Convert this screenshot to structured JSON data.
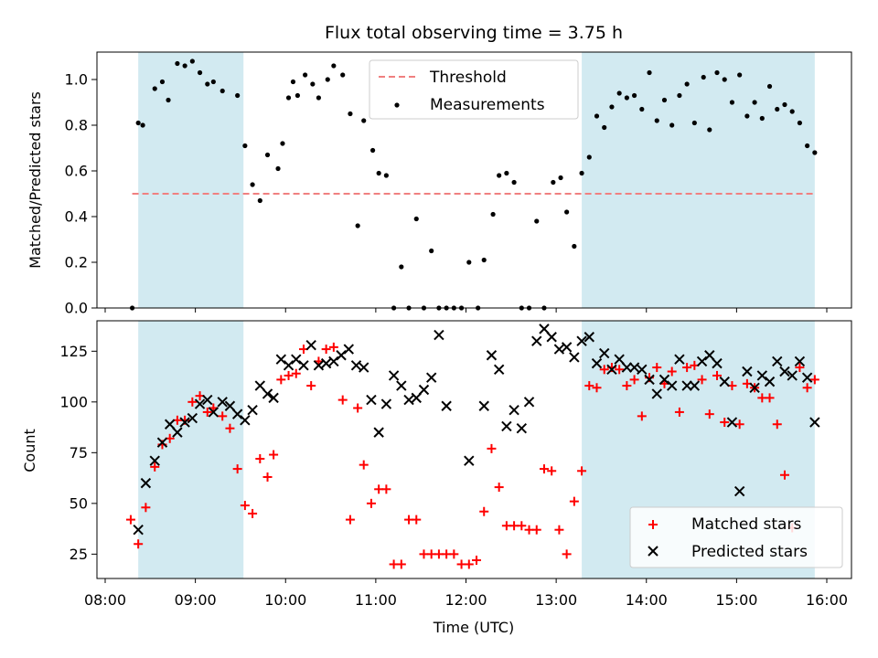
{
  "chart_data": [
    {
      "type": "scatter",
      "title": "Flux total observing time = 3.75 h",
      "xlabel": "",
      "ylabel": "Matched/Predicted stars",
      "xlim": [
        "08:00",
        "16:00"
      ],
      "ylim": [
        0,
        1.12
      ],
      "yticks": [
        "0.0",
        "0.2",
        "0.4",
        "0.6",
        "0.8",
        "1.0"
      ],
      "shaded_intervals": [
        [
          "08:22",
          "09:32"
        ],
        [
          "13:17",
          "15:52"
        ]
      ],
      "shade_color": "#add8e6",
      "threshold": {
        "name": "Threshold",
        "value": 0.5,
        "x_range": [
          "08:18",
          "15:52"
        ],
        "color": "#f08080"
      },
      "legend": {
        "position": "top-center",
        "entries": [
          "Threshold",
          "Measurements"
        ]
      },
      "series": [
        {
          "name": "Measurements",
          "color": "#000000",
          "x": [
            "08:18",
            "08:22",
            "08:25",
            "08:33",
            "08:38",
            "08:42",
            "08:48",
            "08:53",
            "08:58",
            "09:03",
            "09:08",
            "09:12",
            "09:18",
            "09:28",
            "09:33",
            "09:38",
            "09:43",
            "09:48",
            "09:55",
            "09:58",
            "10:02",
            "10:05",
            "10:08",
            "10:13",
            "10:18",
            "10:22",
            "10:28",
            "10:32",
            "10:38",
            "10:43",
            "10:48",
            "10:52",
            "10:58",
            "11:02",
            "11:07",
            "11:12",
            "11:17",
            "11:22",
            "11:27",
            "11:32",
            "11:37",
            "11:42",
            "11:47",
            "11:52",
            "11:57",
            "12:02",
            "12:08",
            "12:12",
            "12:18",
            "12:22",
            "12:27",
            "12:32",
            "12:37",
            "12:42",
            "12:47",
            "12:52",
            "12:58",
            "13:03",
            "13:07",
            "13:12",
            "13:17",
            "13:22",
            "13:27",
            "13:32",
            "13:37",
            "13:42",
            "13:47",
            "13:52",
            "13:57",
            "14:02",
            "14:07",
            "14:12",
            "14:17",
            "14:22",
            "14:27",
            "14:32",
            "14:38",
            "14:42",
            "14:47",
            "14:52",
            "14:57",
            "15:02",
            "15:07",
            "15:12",
            "15:17",
            "15:22",
            "15:27",
            "15:32",
            "15:37",
            "15:42",
            "15:47",
            "15:52"
          ],
          "y": [
            0.0,
            0.81,
            0.8,
            0.96,
            0.99,
            0.91,
            1.07,
            1.06,
            1.08,
            1.03,
            0.98,
            0.99,
            0.95,
            0.93,
            0.71,
            0.54,
            0.47,
            0.67,
            0.61,
            0.72,
            0.92,
            0.99,
            0.93,
            1.02,
            0.98,
            0.92,
            1.0,
            1.06,
            1.02,
            0.85,
            0.36,
            0.82,
            0.69,
            0.59,
            0.58,
            0.0,
            0.18,
            0.0,
            0.39,
            0.0,
            0.25,
            0.0,
            0.0,
            0.0,
            0.0,
            0.2,
            0.0,
            0.21,
            0.41,
            0.58,
            0.59,
            0.55,
            0.0,
            0.0,
            0.38,
            0.0,
            0.55,
            0.57,
            0.42,
            0.27,
            0.59,
            0.66,
            0.84,
            0.79,
            0.88,
            0.94,
            0.92,
            0.93,
            0.87,
            1.03,
            0.82,
            0.91,
            0.8,
            0.93,
            0.98,
            0.81,
            1.01,
            0.78,
            1.03,
            1.0,
            0.9,
            1.02,
            0.84,
            0.9,
            0.83,
            0.97,
            0.87,
            0.89,
            0.86,
            0.81,
            0.71,
            0.68
          ]
        }
      ]
    },
    {
      "type": "scatter",
      "title": "",
      "xlabel": "Time (UTC)",
      "ylabel": "Count",
      "xlim": [
        "08:00",
        "16:00"
      ],
      "ylim": [
        13,
        140
      ],
      "xticks": [
        "08:00",
        "09:00",
        "10:00",
        "11:00",
        "12:00",
        "13:00",
        "14:00",
        "15:00",
        "16:00"
      ],
      "yticks": [
        "25",
        "50",
        "75",
        "100",
        "125"
      ],
      "shaded_intervals": [
        [
          "08:22",
          "09:32"
        ],
        [
          "13:17",
          "15:52"
        ]
      ],
      "shade_color": "#add8e6",
      "legend": {
        "position": "bottom-right",
        "entries": [
          "Matched stars",
          "Predicted stars"
        ]
      },
      "series": [
        {
          "name": "Matched stars",
          "marker": "+",
          "color": "#ff0000",
          "x": [
            "08:17",
            "08:22",
            "08:27",
            "08:33",
            "08:38",
            "08:43",
            "08:48",
            "08:53",
            "08:58",
            "09:03",
            "09:08",
            "09:12",
            "09:18",
            "09:23",
            "09:28",
            "09:33",
            "09:38",
            "09:43",
            "09:48",
            "09:52",
            "09:57",
            "10:02",
            "10:07",
            "10:12",
            "10:17",
            "10:22",
            "10:27",
            "10:32",
            "10:38",
            "10:43",
            "10:48",
            "10:52",
            "10:57",
            "11:02",
            "11:07",
            "11:12",
            "11:17",
            "11:22",
            "11:27",
            "11:32",
            "11:37",
            "11:42",
            "11:47",
            "11:52",
            "11:57",
            "12:02",
            "12:07",
            "12:12",
            "12:17",
            "12:22",
            "12:27",
            "12:32",
            "12:37",
            "12:42",
            "12:47",
            "12:52",
            "12:57",
            "13:02",
            "13:07",
            "13:12",
            "13:17",
            "13:22",
            "13:27",
            "13:32",
            "13:37",
            "13:42",
            "13:47",
            "13:52",
            "13:57",
            "14:02",
            "14:07",
            "14:12",
            "14:17",
            "14:22",
            "14:27",
            "14:32",
            "14:37",
            "14:42",
            "14:47",
            "14:52",
            "14:57",
            "15:02",
            "15:07",
            "15:12",
            "15:17",
            "15:22",
            "15:27",
            "15:32",
            "15:37",
            "15:42",
            "15:47",
            "15:52"
          ],
          "y": [
            42,
            30,
            48,
            68,
            79,
            82,
            91,
            91,
            100,
            103,
            95,
            97,
            93,
            87,
            67,
            49,
            45,
            72,
            63,
            74,
            111,
            113,
            114,
            126,
            108,
            120,
            126,
            127,
            101,
            42,
            97,
            69,
            50,
            57,
            57,
            20,
            20,
            42,
            42,
            25,
            25,
            25,
            25,
            25,
            20,
            20,
            22,
            46,
            77,
            58,
            39,
            39,
            39,
            37,
            37,
            67,
            66,
            37,
            25,
            51,
            66,
            108,
            107,
            116,
            117,
            116,
            108,
            111,
            93,
            112,
            117,
            109,
            115,
            95,
            117,
            118,
            111,
            94,
            113,
            90,
            108,
            89,
            109,
            107,
            102,
            102,
            89,
            64,
            38,
            117,
            107,
            111
          ]
        },
        {
          "name": "Predicted stars",
          "marker": "x",
          "color": "#000000",
          "x": [
            "08:22",
            "08:27",
            "08:33",
            "08:38",
            "08:43",
            "08:48",
            "08:53",
            "08:58",
            "09:03",
            "09:08",
            "09:12",
            "09:18",
            "09:23",
            "09:28",
            "09:33",
            "09:38",
            "09:43",
            "09:48",
            "09:52",
            "09:57",
            "10:02",
            "10:07",
            "10:12",
            "10:17",
            "10:22",
            "10:27",
            "10:32",
            "10:37",
            "10:42",
            "10:47",
            "10:52",
            "10:57",
            "11:02",
            "11:07",
            "11:12",
            "11:17",
            "11:22",
            "11:27",
            "11:32",
            "11:37",
            "11:42",
            "11:47",
            "12:02",
            "12:12",
            "12:17",
            "12:22",
            "12:27",
            "12:32",
            "12:37",
            "12:42",
            "12:47",
            "12:52",
            "12:57",
            "13:02",
            "13:07",
            "13:12",
            "13:17",
            "13:22",
            "13:27",
            "13:32",
            "13:37",
            "13:42",
            "13:47",
            "13:52",
            "13:57",
            "14:02",
            "14:07",
            "14:12",
            "14:17",
            "14:22",
            "14:27",
            "14:32",
            "14:37",
            "14:42",
            "14:47",
            "14:52",
            "14:57",
            "15:02",
            "15:07",
            "15:12",
            "15:17",
            "15:22",
            "15:27",
            "15:32",
            "15:37",
            "15:42",
            "15:47",
            "15:52"
          ],
          "y": [
            37,
            60,
            71,
            80,
            89,
            85,
            90,
            92,
            99,
            101,
            95,
            100,
            98,
            94,
            91,
            96,
            108,
            104,
            102,
            121,
            118,
            121,
            118,
            128,
            118,
            119,
            120,
            123,
            126,
            118,
            117,
            101,
            85,
            99,
            113,
            108,
            101,
            102,
            106,
            112,
            133,
            98,
            71,
            98,
            123,
            116,
            88,
            96,
            87,
            100,
            130,
            136,
            132,
            126,
            127,
            122,
            130,
            132,
            119,
            124,
            116,
            121,
            117,
            117,
            116,
            111,
            104,
            111,
            108,
            121,
            108,
            108,
            120,
            123,
            119,
            110,
            90,
            56,
            115,
            107,
            113,
            110,
            120,
            115,
            113,
            120,
            112,
            90
          ]
        }
      ]
    }
  ]
}
